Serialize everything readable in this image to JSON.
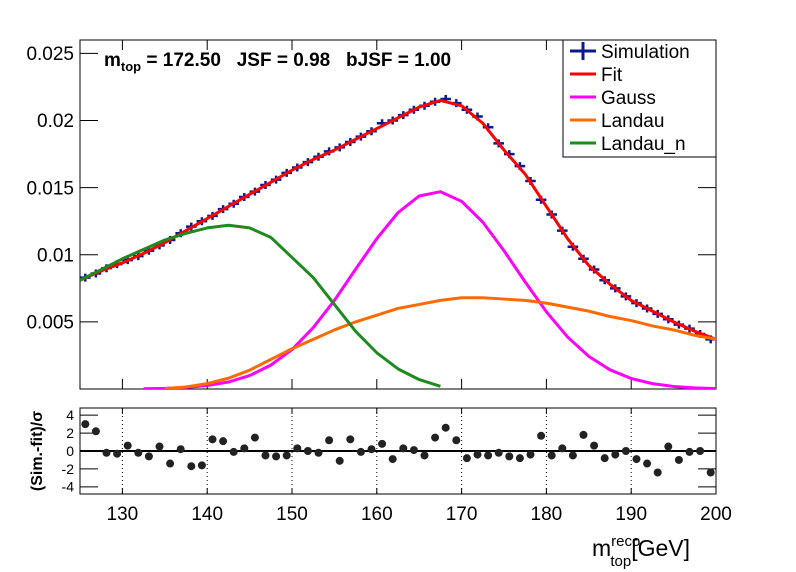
{
  "chart_data": [
    {
      "type": "line",
      "annotation": {
        "symbol": "m",
        "sub": "top",
        "text": " = 172.50   JSF = 0.98   bJSF = 1.00"
      },
      "xlim": [
        125,
        200
      ],
      "xticks": [
        130,
        140,
        150,
        160,
        170,
        180,
        190,
        200
      ],
      "ylim": [
        0,
        0.026
      ],
      "yticks": [
        0.005,
        0.01,
        0.015,
        0.02,
        0.025
      ],
      "legend": "top-right",
      "series": [
        {
          "name": "Simulation",
          "color": "#0a1a8c",
          "marker": "cross",
          "x": [
            125.625,
            126.875,
            128.125,
            129.375,
            130.625,
            131.875,
            133.125,
            134.375,
            135.625,
            136.875,
            138.125,
            139.375,
            140.625,
            141.875,
            143.125,
            144.375,
            145.625,
            146.875,
            148.125,
            149.375,
            150.625,
            151.875,
            153.125,
            154.375,
            155.625,
            156.875,
            158.125,
            159.375,
            160.625,
            161.875,
            163.125,
            164.375,
            165.625,
            166.875,
            168.125,
            169.375,
            170.625,
            171.875,
            173.125,
            174.375,
            175.625,
            176.875,
            178.125,
            179.375,
            180.625,
            181.875,
            183.125,
            184.375,
            185.625,
            186.875,
            188.125,
            189.375,
            190.625,
            191.875,
            193.125,
            194.375,
            195.625,
            196.875,
            198.125,
            199.375
          ],
          "values": [
            0.0083,
            0.0086,
            0.009,
            0.0093,
            0.0096,
            0.0099,
            0.0103,
            0.0107,
            0.0111,
            0.0116,
            0.0121,
            0.0125,
            0.0129,
            0.0134,
            0.0138,
            0.0143,
            0.0147,
            0.0152,
            0.0156,
            0.0161,
            0.0165,
            0.0169,
            0.0173,
            0.0177,
            0.018,
            0.0184,
            0.0188,
            0.0192,
            0.0198,
            0.02,
            0.0204,
            0.0208,
            0.0211,
            0.0214,
            0.0216,
            0.0213,
            0.0208,
            0.0203,
            0.0195,
            0.0183,
            0.0175,
            0.0166,
            0.0155,
            0.0141,
            0.013,
            0.0118,
            0.0106,
            0.0097,
            0.0089,
            0.0081,
            0.0075,
            0.0069,
            0.0064,
            0.006,
            0.0056,
            0.0052,
            0.0048,
            0.0045,
            0.0041,
            0.0037
          ]
        },
        {
          "name": "Fit",
          "color": "#ff0000",
          "x": [
            125,
            127.5,
            130,
            132.5,
            135,
            137.5,
            140,
            142.5,
            145,
            147.5,
            150,
            152.5,
            155,
            157.5,
            160,
            162.5,
            165,
            167.5,
            170,
            172.5,
            175,
            177.5,
            180,
            182.5,
            185,
            187.5,
            190,
            192.5,
            195,
            197.5,
            200
          ],
          "values": [
            0.0081,
            0.0088,
            0.0094,
            0.0101,
            0.0109,
            0.0118,
            0.0127,
            0.0136,
            0.0145,
            0.0154,
            0.0163,
            0.0171,
            0.0178,
            0.0186,
            0.0194,
            0.0202,
            0.021,
            0.0215,
            0.0211,
            0.0198,
            0.0178,
            0.016,
            0.0136,
            0.0112,
            0.0092,
            0.0078,
            0.0066,
            0.0058,
            0.005,
            0.0043,
            0.0037
          ]
        },
        {
          "name": "Gauss",
          "color": "#ff00ff",
          "x": [
            132.5,
            135,
            137.5,
            140,
            142.5,
            145,
            147.5,
            150,
            152.5,
            155,
            157.5,
            160,
            162.5,
            165,
            167.5,
            170,
            172.5,
            175,
            177.5,
            180,
            182.5,
            185,
            187.5,
            190,
            192.5,
            195,
            197.5,
            200
          ],
          "values": [
            2e-05,
            5e-05,
            0.00012,
            0.00026,
            0.00052,
            0.001,
            0.00178,
            0.00294,
            0.00457,
            0.0066,
            0.00892,
            0.0112,
            0.01314,
            0.01438,
            0.0147,
            0.01398,
            0.01243,
            0.0103,
            0.00797,
            0.00575,
            0.00387,
            0.00243,
            0.00143,
            0.00078,
            0.0004,
            0.00019,
            8e-05,
            3e-05
          ]
        },
        {
          "name": "Landau",
          "color": "#ff6a00",
          "x": [
            135,
            137.5,
            140,
            142.5,
            145,
            147.5,
            150,
            152.5,
            155,
            157.5,
            160,
            162.5,
            165,
            167.5,
            170,
            172.5,
            175,
            177.5,
            180,
            182.5,
            185,
            187.5,
            190,
            192.5,
            195,
            197.5,
            200
          ],
          "values": [
            3e-05,
            0.00015,
            0.0004,
            0.0008,
            0.0014,
            0.0022,
            0.003,
            0.0037,
            0.0044,
            0.005,
            0.0055,
            0.006,
            0.0063,
            0.0066,
            0.0068,
            0.0068,
            0.0067,
            0.0066,
            0.0064,
            0.0061,
            0.0058,
            0.0054,
            0.0051,
            0.0047,
            0.0044,
            0.004,
            0.0037
          ]
        },
        {
          "name": "Landau_n",
          "color": "#1f8a1f",
          "x": [
            125,
            127.5,
            130,
            132.5,
            135,
            137.5,
            140,
            142.5,
            145,
            147.5,
            150,
            152.5,
            155,
            157.5,
            160,
            162.5,
            165,
            167.5
          ],
          "values": [
            0.0081,
            0.0089,
            0.0097,
            0.0104,
            0.0111,
            0.0116,
            0.012,
            0.0122,
            0.012,
            0.0113,
            0.0098,
            0.0083,
            0.0063,
            0.0043,
            0.0027,
            0.0015,
            0.0007,
            0.0002
          ]
        }
      ]
    },
    {
      "type": "scatter",
      "ylabel": "(Sim.-fit)/σ",
      "xlabel": {
        "symbol": "m",
        "sup": "reco",
        "sub": "top",
        "unit": "[GeV]"
      },
      "xlim": [
        125,
        200
      ],
      "xticks": [
        130,
        140,
        150,
        160,
        170,
        180,
        190,
        200
      ],
      "ylim": [
        -4.8,
        4.8
      ],
      "yticks": [
        4,
        2,
        0,
        -2,
        -4
      ],
      "grid": "x",
      "color": "#222222",
      "x": [
        125.625,
        126.875,
        128.125,
        129.375,
        130.625,
        131.875,
        133.125,
        134.375,
        135.625,
        136.875,
        138.125,
        139.375,
        140.625,
        141.875,
        143.125,
        144.375,
        145.625,
        146.875,
        148.125,
        149.375,
        150.625,
        151.875,
        153.125,
        154.375,
        155.625,
        156.875,
        158.125,
        159.375,
        160.625,
        161.875,
        163.125,
        164.375,
        165.625,
        166.875,
        168.125,
        169.375,
        170.625,
        171.875,
        173.125,
        174.375,
        175.625,
        176.875,
        178.125,
        179.375,
        180.625,
        181.875,
        183.125,
        184.375,
        185.625,
        186.875,
        188.125,
        189.375,
        190.625,
        191.875,
        193.125,
        194.375,
        195.625,
        196.875,
        198.125,
        199.375
      ],
      "values": [
        3.0,
        2.2,
        -0.2,
        -0.3,
        0.6,
        -0.2,
        -0.6,
        0.5,
        -1.4,
        0.2,
        -1.7,
        -1.6,
        1.3,
        1.1,
        -0.1,
        0.3,
        1.5,
        -0.5,
        -0.6,
        -0.5,
        0.3,
        0.0,
        -0.2,
        1.2,
        -1.1,
        1.3,
        -0.1,
        0.2,
        0.8,
        -0.9,
        0.3,
        0.1,
        -0.5,
        1.5,
        2.6,
        1.2,
        -0.8,
        -0.4,
        -0.5,
        -0.2,
        -0.6,
        -0.8,
        -0.4,
        1.7,
        -0.5,
        0.3,
        -0.5,
        1.8,
        0.6,
        -0.8,
        -0.4,
        0.0,
        -0.9,
        -1.4,
        -2.4,
        0.5,
        -1.0,
        -0.1,
        0.0,
        -2.4
      ]
    }
  ]
}
